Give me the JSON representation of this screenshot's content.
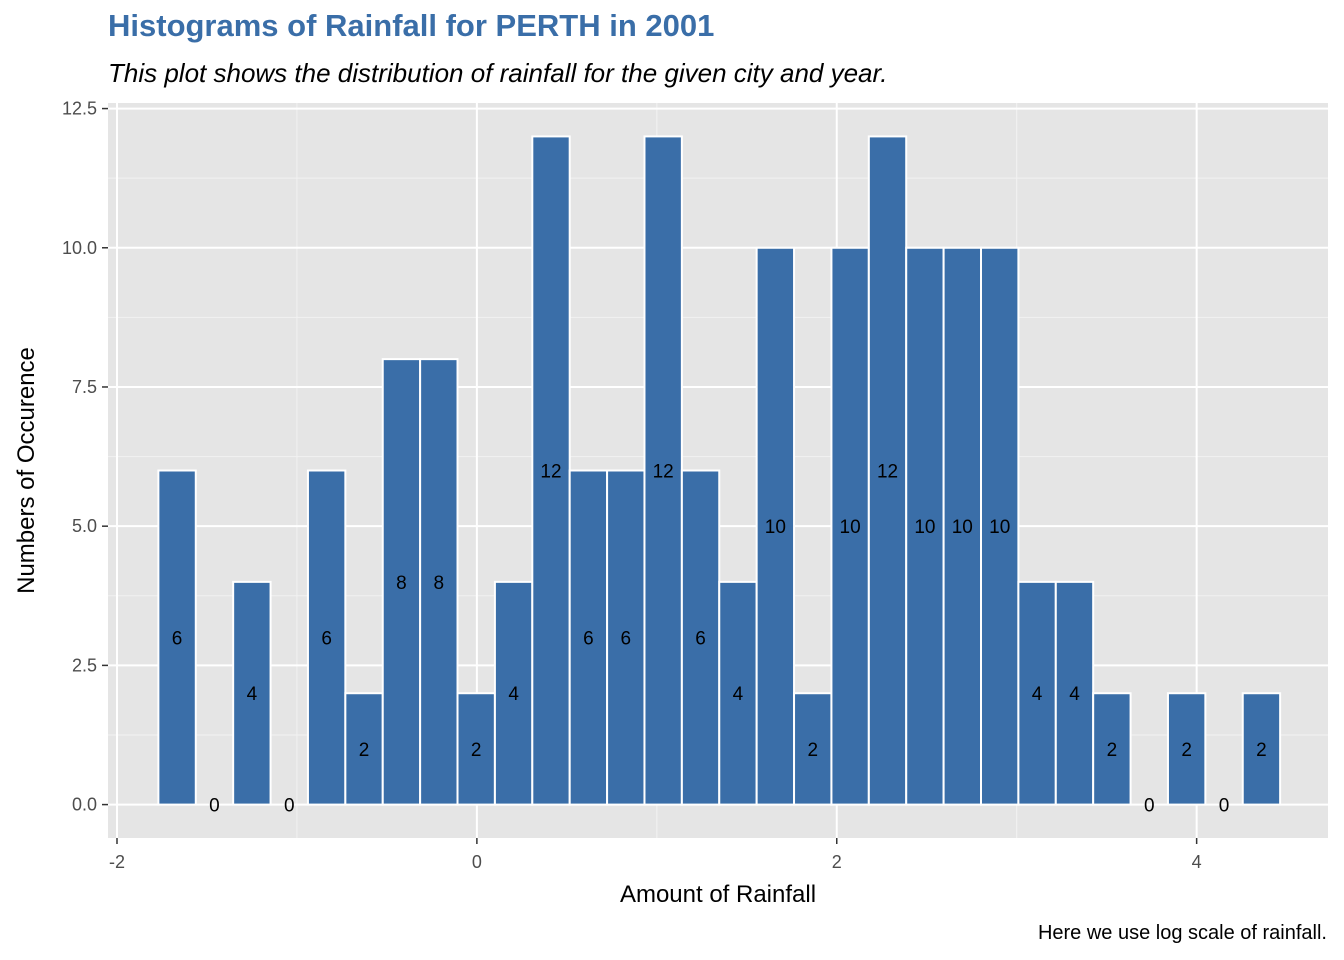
{
  "chart_data": {
    "type": "bar",
    "title": "Histograms of Rainfall for PERTH in 2001",
    "subtitle": "This plot shows the distribution of rainfall for the given city and year.",
    "caption": "Here we use log scale of rainfall.",
    "xlabel": "Amount of Rainfall",
    "ylabel": "Numbers of Occurence",
    "xlim": [
      -2.05,
      4.73
    ],
    "ylim": [
      -0.6,
      12.6
    ],
    "x_ticks": [
      -2,
      0,
      2,
      4
    ],
    "x_tick_labels": [
      "-2",
      "0",
      "2",
      "4"
    ],
    "y_ticks": [
      0,
      2.5,
      5,
      7.5,
      10,
      12.5
    ],
    "y_tick_labels": [
      "0.0",
      "2.5",
      "5.0",
      "7.5",
      "10.0",
      "12.5"
    ],
    "bin_start": -1.77,
    "bin_width": 0.2078,
    "values": [
      6,
      0,
      4,
      0,
      6,
      2,
      8,
      8,
      2,
      4,
      12,
      6,
      6,
      12,
      6,
      4,
      10,
      2,
      10,
      12,
      10,
      10,
      10,
      4,
      4,
      2,
      0,
      2,
      0,
      2
    ],
    "labels": [
      "6",
      "0",
      "4",
      "0",
      "6",
      "2",
      "8",
      "8",
      "2",
      "4",
      "12",
      "6",
      "6",
      "12",
      "6",
      "4",
      "10",
      "2",
      "10",
      "12",
      "10",
      "10",
      "10",
      "4",
      "4",
      "2",
      "0",
      "2",
      "0",
      "2"
    ],
    "bar_color": "#3a6ea8",
    "panel_color": "#e5e5e5",
    "grid": true,
    "legend": "none"
  }
}
